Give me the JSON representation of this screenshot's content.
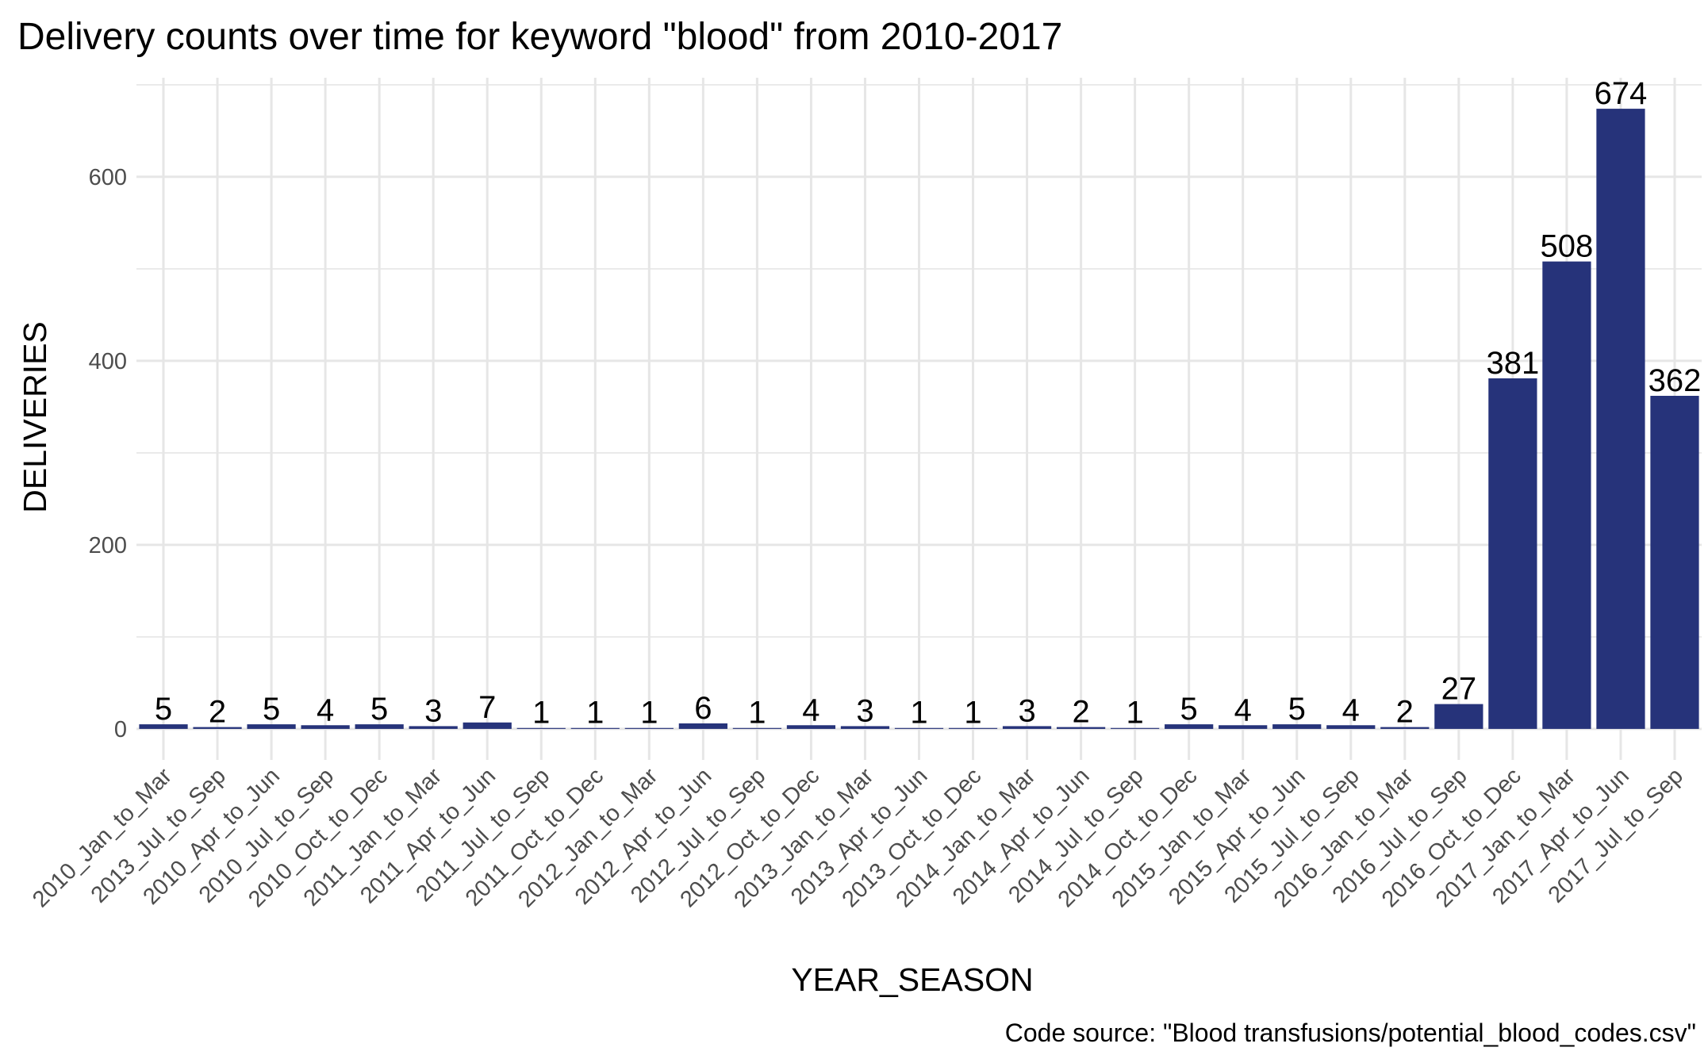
{
  "chart_data": {
    "type": "bar",
    "title": "Delivery counts over time for keyword \"blood\" from 2010-2017",
    "xlabel": "YEAR_SEASON",
    "ylabel": "DELIVERIES",
    "caption": "Code source: \"Blood transfusions/potential_blood_codes.csv\"",
    "categories": [
      "2010_Jan_to_Mar",
      "2013_Jul_to_Sep",
      "2010_Apr_to_Jun",
      "2010_Jul_to_Sep",
      "2010_Oct_to_Dec",
      "2011_Jan_to_Mar",
      "2011_Apr_to_Jun",
      "2011_Jul_to_Sep",
      "2011_Oct_to_Dec",
      "2012_Jan_to_Mar",
      "2012_Apr_to_Jun",
      "2012_Jul_to_Sep",
      "2012_Oct_to_Dec",
      "2013_Jan_to_Mar",
      "2013_Apr_to_Jun",
      "2013_Oct_to_Dec",
      "2014_Jan_to_Mar",
      "2014_Apr_to_Jun",
      "2014_Jul_to_Sep",
      "2014_Oct_to_Dec",
      "2015_Jan_to_Mar",
      "2015_Apr_to_Jun",
      "2015_Jul_to_Sep",
      "2016_Jan_to_Mar",
      "2016_Jul_to_Sep",
      "2016_Oct_to_Dec",
      "2017_Jan_to_Mar",
      "2017_Apr_to_Jun",
      "2017_Jul_to_Sep"
    ],
    "values": [
      5,
      2,
      5,
      4,
      5,
      3,
      7,
      1,
      1,
      1,
      6,
      1,
      4,
      3,
      1,
      1,
      3,
      2,
      1,
      5,
      4,
      5,
      4,
      2,
      27,
      381,
      508,
      674,
      362
    ],
    "data_labels": [
      "5",
      "2",
      "5",
      "4",
      "5",
      "3",
      "7",
      "1",
      "1",
      "1",
      "6",
      "1",
      "4",
      "3",
      "1",
      "1",
      "3",
      "2",
      "1",
      "5",
      "4",
      "5",
      "4",
      "2",
      "27",
      "381",
      "508",
      "674",
      "362"
    ],
    "y_ticks": [
      0,
      200,
      400,
      600
    ],
    "y_tick_labels": [
      "0",
      "200",
      "400",
      "600"
    ],
    "ylim": [
      -33.7,
      707.7
    ],
    "bar_color": "#26337A",
    "grid": true,
    "legend": "none"
  }
}
